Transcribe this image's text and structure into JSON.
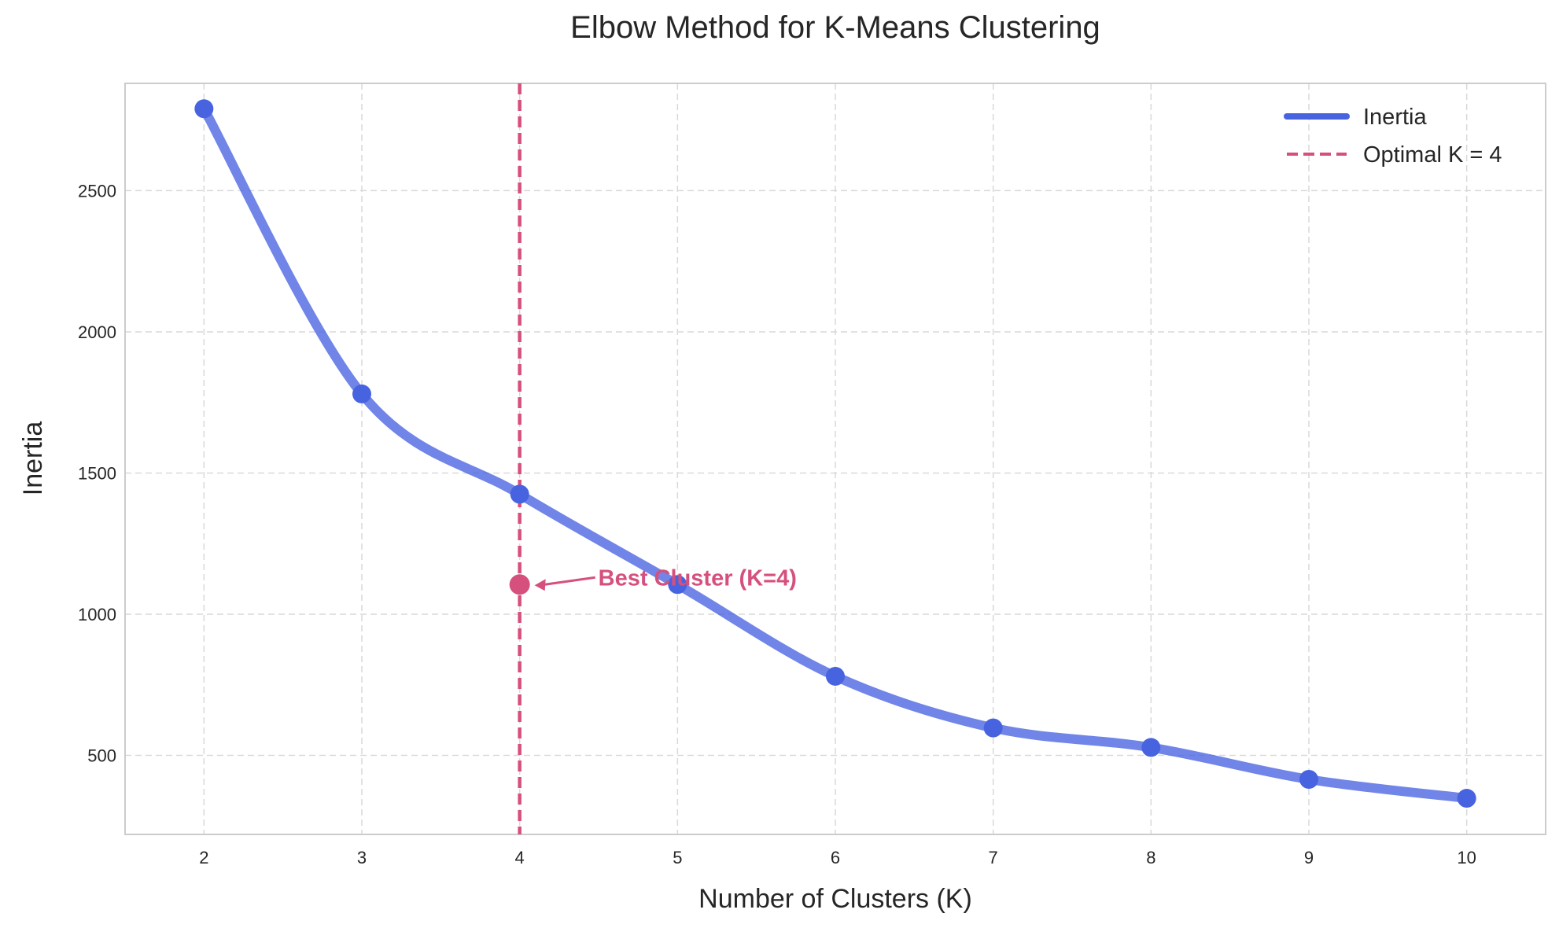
{
  "chart_data": {
    "type": "line",
    "title": "Elbow Method for K-Means Clustering",
    "xlabel": "Number of Clusters (K)",
    "ylabel": "Inertia",
    "xlim": [
      1.5,
      10.5
    ],
    "ylim": [
      220,
      2880
    ],
    "x_ticks": [
      2,
      3,
      4,
      5,
      6,
      7,
      8,
      9,
      10
    ],
    "y_ticks": [
      500,
      1000,
      1500,
      2000,
      2500
    ],
    "grid": true,
    "legend_position": "top-right",
    "series": [
      {
        "name": "Inertia",
        "x": [
          2,
          3,
          4,
          5,
          6,
          7,
          8,
          9,
          10
        ],
        "values": [
          2790,
          1780,
          1425,
          1105,
          780,
          597,
          528,
          415,
          348
        ],
        "color": "#4863e0"
      }
    ],
    "optimal_line": {
      "label": "Optimal K = 4",
      "x": 4,
      "color": "#d6507e"
    },
    "annotation": {
      "text": "Best Cluster (K=4)",
      "x": 4,
      "y": 1105,
      "color": "#d6507e"
    }
  }
}
